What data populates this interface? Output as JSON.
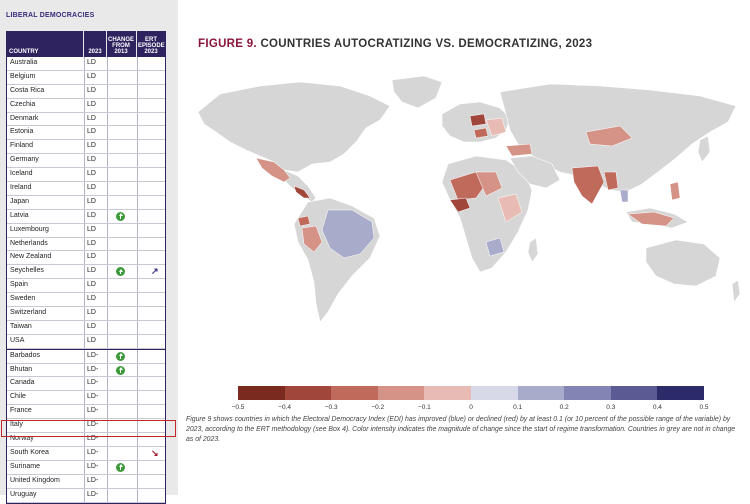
{
  "panel": {
    "title": "LIBERAL DEMOCRACIES",
    "headers": {
      "country": "COUNTRY",
      "y2023": "2023",
      "change": [
        "CHANGE",
        "FROM",
        "2013"
      ],
      "ert": [
        "ERT",
        "EPISODE",
        "2023"
      ]
    },
    "rows": [
      {
        "country": "Australia",
        "status": "LD",
        "change": "",
        "ert": ""
      },
      {
        "country": "Belgium",
        "status": "LD",
        "change": "",
        "ert": ""
      },
      {
        "country": "Costa Rica",
        "status": "LD",
        "change": "",
        "ert": ""
      },
      {
        "country": "Czechia",
        "status": "LD",
        "change": "",
        "ert": ""
      },
      {
        "country": "Denmark",
        "status": "LD",
        "change": "",
        "ert": ""
      },
      {
        "country": "Estonia",
        "status": "LD",
        "change": "",
        "ert": ""
      },
      {
        "country": "Finland",
        "status": "LD",
        "change": "",
        "ert": ""
      },
      {
        "country": "Germany",
        "status": "LD",
        "change": "",
        "ert": ""
      },
      {
        "country": "Iceland",
        "status": "LD",
        "change": "",
        "ert": ""
      },
      {
        "country": "Ireland",
        "status": "LD",
        "change": "",
        "ert": ""
      },
      {
        "country": "Japan",
        "status": "LD",
        "change": "",
        "ert": ""
      },
      {
        "country": "Latvia",
        "status": "LD",
        "change": "up",
        "ert": ""
      },
      {
        "country": "Luxembourg",
        "status": "LD",
        "change": "",
        "ert": ""
      },
      {
        "country": "Netherlands",
        "status": "LD",
        "change": "",
        "ert": ""
      },
      {
        "country": "New Zealand",
        "status": "LD",
        "change": "",
        "ert": ""
      },
      {
        "country": "Seychelles",
        "status": "LD",
        "change": "up",
        "ert": "democratizing"
      },
      {
        "country": "Spain",
        "status": "LD",
        "change": "",
        "ert": ""
      },
      {
        "country": "Sweden",
        "status": "LD",
        "change": "",
        "ert": ""
      },
      {
        "country": "Switzerland",
        "status": "LD",
        "change": "",
        "ert": ""
      },
      {
        "country": "Taiwan",
        "status": "LD",
        "change": "",
        "ert": ""
      },
      {
        "country": "USA",
        "status": "LD",
        "change": "",
        "ert": ""
      },
      {
        "country": "Barbados",
        "status": "LD-",
        "change": "up",
        "ert": ""
      },
      {
        "country": "Bhutan",
        "status": "LD-",
        "change": "up",
        "ert": ""
      },
      {
        "country": "Canada",
        "status": "LD-",
        "change": "",
        "ert": ""
      },
      {
        "country": "Chile",
        "status": "LD-",
        "change": "",
        "ert": ""
      },
      {
        "country": "France",
        "status": "LD-",
        "change": "",
        "ert": ""
      },
      {
        "country": "Italy",
        "status": "LD-",
        "change": "",
        "ert": ""
      },
      {
        "country": "Norway",
        "status": "LD-",
        "change": "",
        "ert": ""
      },
      {
        "country": "South Korea",
        "status": "LD-",
        "change": "",
        "ert": "autocratizing"
      },
      {
        "country": "Suriname",
        "status": "LD-",
        "change": "up",
        "ert": ""
      },
      {
        "country": "United Kingdom",
        "status": "LD-",
        "change": "",
        "ert": ""
      },
      {
        "country": "Uruguay",
        "status": "LD-",
        "change": "",
        "ert": ""
      }
    ]
  },
  "figure": {
    "number": "FIGURE 9.",
    "title": "COUNTRIES AUTOCRATIZING VS. DEMOCRATIZING, 2023"
  },
  "legend": {
    "ticks": [
      "−0.5",
      "−0.4",
      "−0.3",
      "−0.2",
      "−0.1",
      "0",
      "0.1",
      "0.2",
      "0.3",
      "0.4",
      "0.5"
    ],
    "colors": [
      "#7a2a1e",
      "#a0463a",
      "#c06a5c",
      "#d59286",
      "#e8bcb4",
      "#d8d9e8",
      "#a9abcb",
      "#8284b4",
      "#5a5b92",
      "#2b2b6a"
    ]
  },
  "caption": "Figure 9 shows countries in which the Electoral Democracy Index (EDI) has improved (blue) or declined (red) by at least 0.1 (or 10 percent of the possible range of the variable) by 2023, according to the ERT methodology (see Box 4). Color intensity indicates the magnitude of change since the start of regime transformation. Countries in grey are not in change as of 2023.",
  "colors": {
    "header": "#2e225f",
    "title_accent": "#8a1538",
    "up_icon": "#3c9a3a",
    "highlight": "#c1272d",
    "land_grey": "#d6d6d6"
  }
}
